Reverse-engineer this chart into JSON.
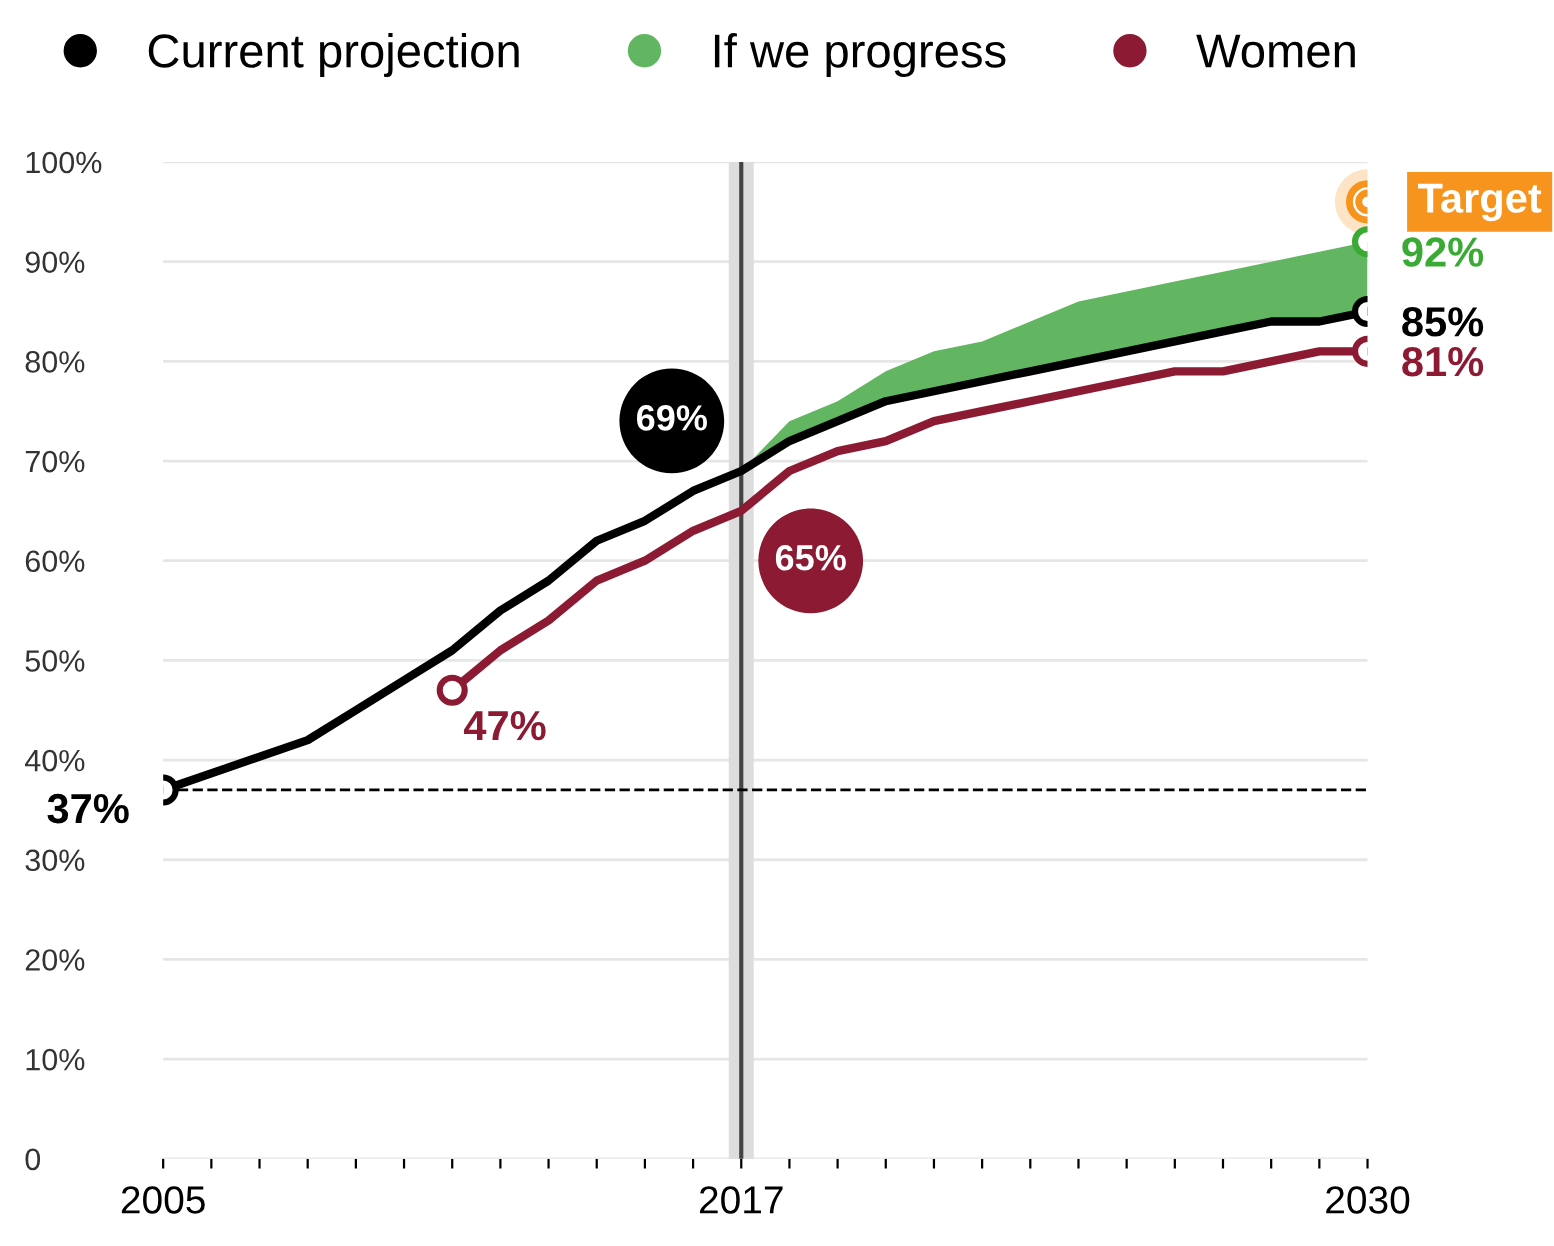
{
  "chart_data": {
    "type": "line",
    "x": [
      2005,
      2008,
      2009,
      2010,
      2011,
      2012,
      2013,
      2014,
      2015,
      2016,
      2017,
      2018,
      2019,
      2020,
      2021,
      2022,
      2023,
      2024,
      2025,
      2026,
      2027,
      2028,
      2029,
      2030
    ],
    "series": [
      {
        "name": "Current projection",
        "color": "#000000",
        "values": [
          37,
          42,
          45,
          48,
          51,
          55,
          58,
          62,
          64,
          67,
          69,
          72,
          74,
          76,
          77,
          78,
          79,
          80,
          81,
          82,
          83,
          84,
          84,
          85
        ]
      },
      {
        "name": "If we progress",
        "type": "area",
        "color": "#62b661",
        "x": [
          2017,
          2018,
          2019,
          2020,
          2021,
          2022,
          2023,
          2024,
          2025,
          2026,
          2027,
          2028,
          2029,
          2030
        ],
        "values": [
          69,
          74,
          76,
          79,
          81,
          82,
          84,
          86,
          87,
          88,
          89,
          90,
          91,
          92
        ]
      },
      {
        "name": "Women",
        "color": "#8b1a32",
        "x": [
          2011,
          2012,
          2013,
          2014,
          2015,
          2016,
          2017,
          2018,
          2019,
          2020,
          2021,
          2022,
          2023,
          2024,
          2025,
          2026,
          2027,
          2028,
          2029,
          2030
        ],
        "values": [
          47,
          51,
          54,
          58,
          60,
          63,
          65,
          69,
          71,
          72,
          74,
          75,
          76,
          77,
          78,
          79,
          79,
          80,
          81,
          81
        ]
      },
      {
        "type": "scatter",
        "color": "#f7941d",
        "x": [
          2030
        ],
        "values": [
          96
        ]
      }
    ],
    "annotations": [
      {
        "text": "37%",
        "x": 2005,
        "y": 37
      },
      {
        "text": "47%",
        "x": 2011,
        "y": 47
      },
      {
        "text": "69%",
        "x": 2017,
        "y": 69
      },
      {
        "text": "65%",
        "x": 2017,
        "y": 65
      },
      {
        "text": "92%",
        "x": 2030,
        "y": 92
      },
      {
        "text": "85%",
        "x": 2030,
        "y": 85
      },
      {
        "text": "81%",
        "x": 2030,
        "y": 81
      },
      {
        "text": "Target",
        "x": 2030,
        "y": 96
      }
    ],
    "xlim": [
      2005,
      2030
    ],
    "xticks": [
      2005,
      {
        "value": 2006,
        "label": null
      },
      {
        "value": 2007,
        "label": null
      },
      {
        "value": 2008,
        "label": null
      },
      {
        "value": 2009,
        "label": null
      },
      {
        "value": 2010,
        "label": null
      },
      {
        "value": 2011,
        "label": null
      },
      {
        "value": 2012,
        "label": null
      },
      {
        "value": 2013,
        "label": null
      },
      {
        "value": 2014,
        "label": null
      },
      {
        "value": 2015,
        "label": null
      },
      {
        "value": 2016,
        "label": null
      },
      2017,
      {
        "value": 2018,
        "label": null
      },
      {
        "value": 2019,
        "label": null
      },
      {
        "value": 2020,
        "label": null
      },
      {
        "value": 2021,
        "label": null
      },
      {
        "value": 2022,
        "label": null
      },
      {
        "value": 2023,
        "label": null
      },
      {
        "value": 2024,
        "label": null
      },
      {
        "value": 2025,
        "label": null
      },
      {
        "value": 2026,
        "label": null
      },
      {
        "value": 2027,
        "label": null
      },
      {
        "value": 2028,
        "label": null
      },
      {
        "value": 2029,
        "label": null
      },
      2030
    ],
    "ylim": [
      0,
      100
    ],
    "yticks": [
      0,
      {
        "value": 10,
        "label": "10%"
      },
      {
        "value": 20,
        "label": "20%"
      },
      {
        "value": 30,
        "label": "30%"
      },
      {
        "value": 40,
        "label": "40%"
      },
      {
        "value": 50,
        "label": "50%"
      },
      {
        "value": 60,
        "label": "60%"
      },
      {
        "value": 70,
        "label": "70%"
      },
      {
        "value": 80,
        "label": "80%"
      },
      {
        "value": 90,
        "label": "90%"
      },
      {
        "value": 100,
        "label": "100%"
      }
    ],
    "ref_lines": [
      {
        "axis": "y",
        "value": 37,
        "color": "#000000",
        "line_style": "dashed"
      },
      {
        "axis": "x",
        "value": 2017,
        "color": "#dddddd",
        "line_style": "solid"
      },
      {
        "axis": "x",
        "value": 2017,
        "color": "#444444",
        "line_style": "solid"
      }
    ],
    "grid": "y",
    "legend": "top",
    "line_style": "solid"
  }
}
